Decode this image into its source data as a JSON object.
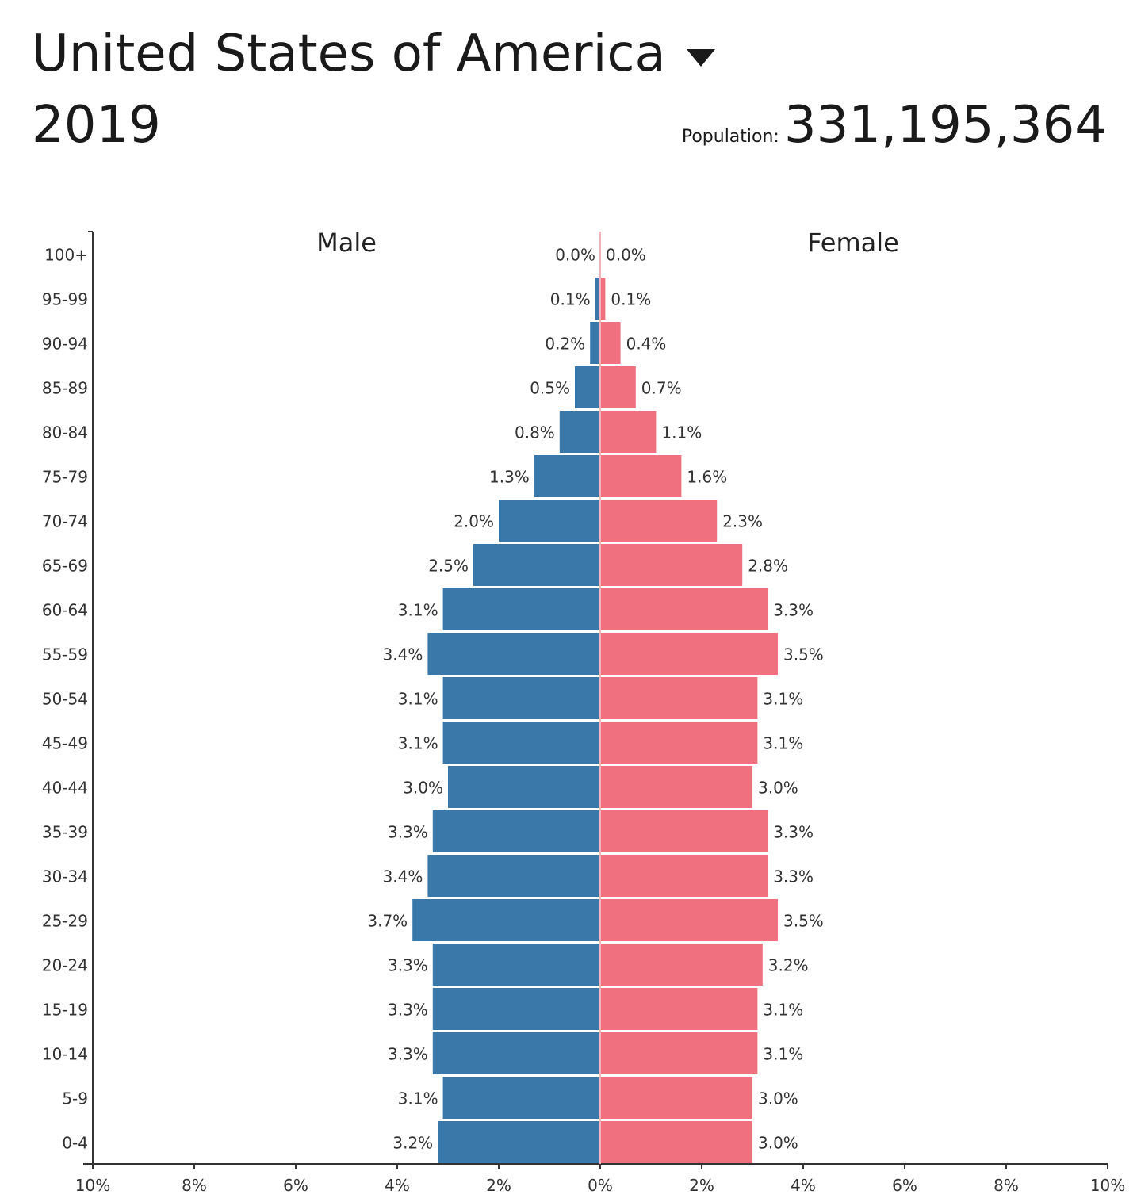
{
  "header": {
    "country": "United States of America",
    "year": "2019",
    "population_label": "Population:",
    "population_value": "331,195,364"
  },
  "chart_data": {
    "type": "bar",
    "orientation": "horizontal-pyramid",
    "categories": [
      "100+",
      "95-99",
      "90-94",
      "85-89",
      "80-84",
      "75-79",
      "70-74",
      "65-69",
      "60-64",
      "55-59",
      "50-54",
      "45-49",
      "40-44",
      "35-39",
      "30-34",
      "25-29",
      "20-24",
      "15-19",
      "10-14",
      "5-9",
      "0-4"
    ],
    "series": [
      {
        "name": "Male",
        "color": "#3a78aa",
        "values": [
          0.0,
          0.1,
          0.2,
          0.5,
          0.8,
          1.3,
          2.0,
          2.5,
          3.1,
          3.4,
          3.1,
          3.1,
          3.0,
          3.3,
          3.4,
          3.7,
          3.3,
          3.3,
          3.3,
          3.1,
          3.2
        ],
        "labels": [
          "0.0%",
          "0.1%",
          "0.2%",
          "0.5%",
          "0.8%",
          "1.3%",
          "2.0%",
          "2.5%",
          "3.1%",
          "3.4%",
          "3.1%",
          "3.1%",
          "3.0%",
          "3.3%",
          "3.4%",
          "3.7%",
          "3.3%",
          "3.3%",
          "3.3%",
          "3.1%",
          "3.2%"
        ]
      },
      {
        "name": "Female",
        "color": "#f07080",
        "values": [
          0.0,
          0.1,
          0.4,
          0.7,
          1.1,
          1.6,
          2.3,
          2.8,
          3.3,
          3.5,
          3.1,
          3.1,
          3.0,
          3.3,
          3.3,
          3.5,
          3.2,
          3.1,
          3.1,
          3.0,
          3.0
        ],
        "labels": [
          "0.0%",
          "0.1%",
          "0.4%",
          "0.7%",
          "1.1%",
          "1.6%",
          "2.3%",
          "2.8%",
          "3.3%",
          "3.5%",
          "3.1%",
          "3.1%",
          "3.0%",
          "3.3%",
          "3.3%",
          "3.5%",
          "3.2%",
          "3.1%",
          "3.1%",
          "3.0%",
          "3.0%"
        ]
      }
    ],
    "x_ticks": [
      "10%",
      "8%",
      "6%",
      "4%",
      "2%",
      "0%",
      "2%",
      "4%",
      "6%",
      "8%",
      "10%"
    ],
    "xlim": [
      -10,
      10
    ],
    "grid": false
  }
}
